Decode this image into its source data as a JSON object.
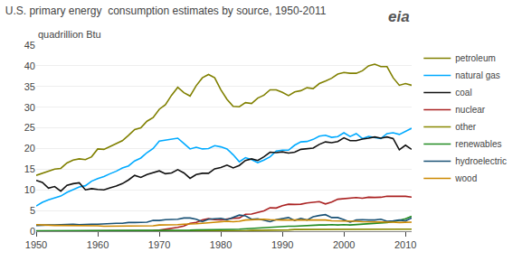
{
  "chart_data": {
    "type": "line",
    "title": "U.S. primary energy  consumption estimates by source, 1950-2011",
    "ylabel": "quadrillion Btu",
    "annotations": [
      "eia"
    ],
    "x": [
      1950,
      1951,
      1952,
      1953,
      1954,
      1955,
      1956,
      1957,
      1958,
      1959,
      1960,
      1961,
      1962,
      1963,
      1964,
      1965,
      1966,
      1967,
      1968,
      1969,
      1970,
      1971,
      1972,
      1973,
      1974,
      1975,
      1976,
      1977,
      1978,
      1979,
      1980,
      1981,
      1982,
      1983,
      1984,
      1985,
      1986,
      1987,
      1988,
      1989,
      1990,
      1991,
      1992,
      1993,
      1994,
      1995,
      1996,
      1997,
      1998,
      1999,
      2000,
      2001,
      2002,
      2003,
      2004,
      2005,
      2006,
      2007,
      2008,
      2009,
      2010,
      2011
    ],
    "xlim": [
      1950,
      2011
    ],
    "xticks": [
      1950,
      1960,
      1970,
      1980,
      1990,
      2000,
      2010
    ],
    "ylim": [
      0,
      45
    ],
    "yticks": [
      0,
      5,
      10,
      15,
      20,
      25,
      30,
      35,
      40,
      45
    ],
    "grid": true,
    "legend": "right",
    "series": [
      {
        "name": "petroleum",
        "color": "#808000",
        "values": [
          13.5,
          14.0,
          14.5,
          15.0,
          15.2,
          16.5,
          17.2,
          17.5,
          17.3,
          18.0,
          19.9,
          19.8,
          20.5,
          21.2,
          21.9,
          23.2,
          24.6,
          25.0,
          26.6,
          27.5,
          29.5,
          30.6,
          32.9,
          34.8,
          33.5,
          32.7,
          35.2,
          37.1,
          37.9,
          37.1,
          34.2,
          31.9,
          30.2,
          30.1,
          31.1,
          30.9,
          32.2,
          32.9,
          34.2,
          34.2,
          33.6,
          32.8,
          33.7,
          34.0,
          34.7,
          34.5,
          35.7,
          36.3,
          37.0,
          38.0,
          38.4,
          38.2,
          38.2,
          38.8,
          40.0,
          40.4,
          39.8,
          39.8,
          37.1,
          35.3,
          35.7,
          35.3
        ]
      },
      {
        "name": "natural gas",
        "color": "#00aaff",
        "values": [
          6.1,
          7.0,
          7.6,
          8.1,
          8.5,
          9.4,
          10.0,
          10.7,
          11.0,
          12.1,
          12.7,
          13.2,
          13.9,
          14.5,
          15.3,
          15.8,
          17.0,
          17.7,
          19.0,
          20.0,
          21.8,
          22.0,
          22.2,
          22.5,
          21.2,
          19.9,
          20.3,
          19.9,
          20.0,
          20.7,
          20.4,
          19.9,
          18.5,
          16.8,
          17.8,
          17.3,
          16.6,
          17.2,
          18.0,
          19.4,
          19.6,
          19.6,
          20.8,
          21.6,
          21.7,
          22.2,
          23.0,
          23.2,
          22.7,
          22.9,
          23.8,
          22.9,
          23.6,
          22.4,
          22.9,
          22.6,
          22.4,
          23.6,
          23.8,
          23.4,
          24.1,
          24.9
        ]
      },
      {
        "name": "coal",
        "color": "#111111",
        "values": [
          12.3,
          11.8,
          10.4,
          10.8,
          9.7,
          11.1,
          11.5,
          11.7,
          10.0,
          10.3,
          10.1,
          10.0,
          10.5,
          10.9,
          11.5,
          12.4,
          13.5,
          13.0,
          13.7,
          14.1,
          14.6,
          13.9,
          14.1,
          14.9,
          14.1,
          12.8,
          13.7,
          14.0,
          14.0,
          15.1,
          15.4,
          16.0,
          15.3,
          15.9,
          17.1,
          17.5,
          17.1,
          18.0,
          19.1,
          19.0,
          19.2,
          18.9,
          19.1,
          19.8,
          20.0,
          20.1,
          21.0,
          21.6,
          21.4,
          21.7,
          22.6,
          21.9,
          21.9,
          22.3,
          22.5,
          22.8,
          22.5,
          22.8,
          22.4,
          19.7,
          20.8,
          19.8
        ]
      },
      {
        "name": "nuclear",
        "color": "#aa2222",
        "values": [
          0,
          0,
          0,
          0,
          0,
          0,
          0,
          0,
          0,
          0,
          0.01,
          0.02,
          0.03,
          0.04,
          0.04,
          0.04,
          0.06,
          0.09,
          0.14,
          0.15,
          0.24,
          0.41,
          0.58,
          0.91,
          1.27,
          1.9,
          2.11,
          2.7,
          3.02,
          2.78,
          2.74,
          3.01,
          3.13,
          3.2,
          4.08,
          4.15,
          4.47,
          4.92,
          5.66,
          5.6,
          6.16,
          6.52,
          6.48,
          6.52,
          6.84,
          7.08,
          7.16,
          6.6,
          7.07,
          7.73,
          7.86,
          8.03,
          8.15,
          7.97,
          8.22,
          8.16,
          8.21,
          8.46,
          8.46,
          8.35,
          8.44,
          8.26
        ]
      },
      {
        "name": "other",
        "color": "#888800",
        "values": [
          0.0,
          0.0,
          0.0,
          0.0,
          0.0,
          0.0,
          0.0,
          0.0,
          0.0,
          0.0,
          0.0,
          0.0,
          0.0,
          0.0,
          0.0,
          0.0,
          0.0,
          0.0,
          0.0,
          0.0,
          0.0,
          0.0,
          0.0,
          0.0,
          0.0,
          0.0,
          0.0,
          0.0,
          0.0,
          0.0,
          0.1,
          0.1,
          0.1,
          0.1,
          0.1,
          0.2,
          0.2,
          0.2,
          0.3,
          0.3,
          0.3,
          0.3,
          0.4,
          0.4,
          0.4,
          0.4,
          0.5,
          0.5,
          0.5,
          0.5,
          0.5,
          0.5,
          0.5,
          0.5,
          0.5,
          0.5,
          0.5,
          0.5,
          0.5,
          0.5,
          0.5,
          0.5
        ]
      },
      {
        "name": "renewables",
        "color": "#228B22",
        "values": [
          0.1,
          0.1,
          0.1,
          0.1,
          0.1,
          0.1,
          0.1,
          0.1,
          0.1,
          0.1,
          0.1,
          0.1,
          0.1,
          0.1,
          0.1,
          0.1,
          0.15,
          0.15,
          0.15,
          0.15,
          0.2,
          0.2,
          0.2,
          0.2,
          0.2,
          0.25,
          0.3,
          0.3,
          0.3,
          0.35,
          0.4,
          0.4,
          0.45,
          0.5,
          0.6,
          0.7,
          0.7,
          0.75,
          0.9,
          1.0,
          1.1,
          1.2,
          1.2,
          1.3,
          1.3,
          1.4,
          1.5,
          1.5,
          1.6,
          1.5,
          1.6,
          1.5,
          1.6,
          1.7,
          1.7,
          1.8,
          1.9,
          2.1,
          2.3,
          2.6,
          3.0,
          3.6
        ]
      },
      {
        "name": "hydroelectric",
        "color": "#1a5276",
        "values": [
          1.4,
          1.5,
          1.5,
          1.5,
          1.6,
          1.6,
          1.7,
          1.6,
          1.7,
          1.7,
          1.7,
          1.8,
          1.8,
          1.9,
          1.9,
          2.1,
          2.1,
          2.1,
          2.2,
          2.6,
          2.6,
          2.8,
          2.9,
          2.9,
          3.2,
          3.2,
          2.9,
          2.3,
          2.9,
          3.0,
          3.1,
          2.8,
          3.3,
          3.9,
          3.7,
          2.9,
          3.0,
          2.6,
          2.3,
          2.8,
          3.0,
          3.3,
          2.6,
          3.1,
          2.7,
          3.5,
          3.8,
          4.0,
          3.3,
          3.3,
          2.8,
          2.2,
          2.7,
          2.8,
          2.7,
          2.7,
          2.9,
          2.4,
          2.5,
          2.7,
          2.5,
          3.2
        ]
      },
      {
        "name": "wood",
        "color": "#cc8800",
        "values": [
          1.6,
          1.5,
          1.5,
          1.4,
          1.4,
          1.4,
          1.4,
          1.3,
          1.3,
          1.3,
          1.3,
          1.2,
          1.2,
          1.2,
          1.2,
          1.2,
          1.3,
          1.3,
          1.3,
          1.3,
          1.5,
          1.5,
          1.5,
          1.6,
          1.7,
          1.7,
          1.8,
          1.9,
          2.0,
          2.1,
          2.3,
          2.4,
          2.3,
          2.4,
          2.7,
          2.8,
          2.9,
          2.9,
          2.8,
          2.7,
          2.7,
          2.7,
          2.7,
          2.7,
          2.7,
          2.7,
          2.7,
          2.7,
          2.5,
          2.5,
          2.5,
          2.4,
          2.4,
          2.3,
          2.3,
          2.3,
          2.3,
          2.2,
          2.2,
          2.1,
          2.1,
          2.2
        ]
      }
    ]
  }
}
